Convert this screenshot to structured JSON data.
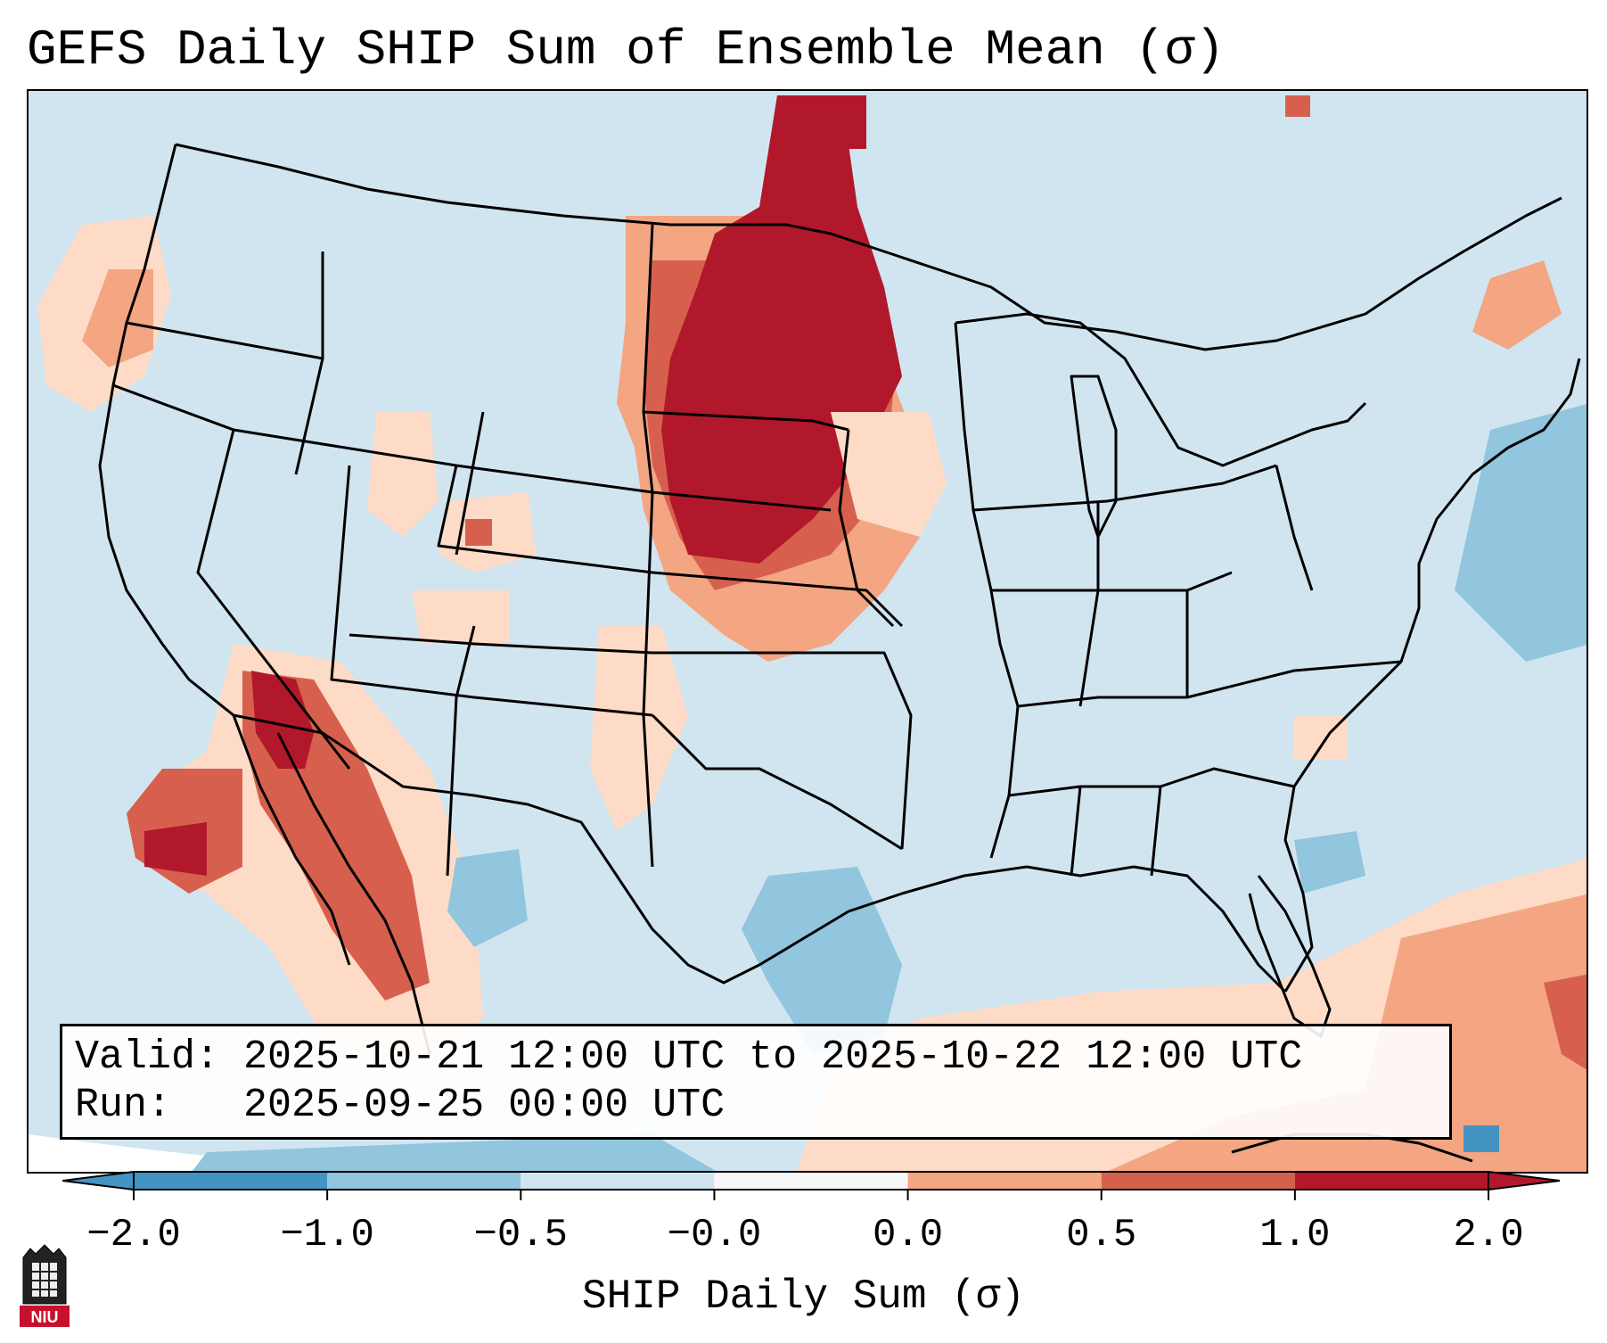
{
  "title": "GEFS Daily SHIP Sum of Ensemble Mean (σ)",
  "info": {
    "valid_label": "Valid:",
    "valid_value": "2025-10-21 12:00 UTC to 2025-10-22 12:00 UTC",
    "run_label": "Run:",
    "run_value": "2025-09-25 00:00 UTC"
  },
  "colorbar": {
    "label": "SHIP Daily Sum (σ)",
    "ticks": [
      "−2.0",
      "−1.0",
      "−0.5",
      "−0.0",
      "0.0",
      "0.5",
      "1.0",
      "2.0"
    ],
    "colors": [
      "#4393c3",
      "#92c5de",
      "#d1e5f0",
      "#f7f7f7",
      "#fddbc7",
      "#f4a582",
      "#d6604d",
      "#b2182b"
    ],
    "extend": "both"
  },
  "logo": {
    "text": "NIU",
    "icon": "niu-seal-icon"
  },
  "colors": {
    "background_anomaly": "#d1e5f0",
    "outline": "#000000"
  }
}
